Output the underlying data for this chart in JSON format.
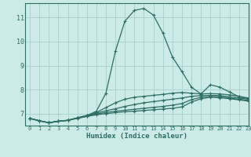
{
  "title": "",
  "xlabel": "Humidex (Indice chaleur)",
  "ylabel": "",
  "background_color": "#cceae7",
  "grid_color": "#aad4d0",
  "line_color": "#2e6e65",
  "xlim": [
    -0.5,
    23
  ],
  "ylim": [
    6.5,
    11.6
  ],
  "xticks": [
    0,
    1,
    2,
    3,
    4,
    5,
    6,
    7,
    8,
    9,
    10,
    11,
    12,
    13,
    14,
    15,
    16,
    17,
    18,
    19,
    20,
    21,
    22,
    23
  ],
  "yticks": [
    7,
    8,
    9,
    10,
    11
  ],
  "curves": [
    [
      6.8,
      6.7,
      6.62,
      6.68,
      6.72,
      6.82,
      6.92,
      7.1,
      7.85,
      9.6,
      10.85,
      11.3,
      11.38,
      11.1,
      10.35,
      9.35,
      8.75,
      8.1,
      7.82,
      8.2,
      8.1,
      7.9,
      7.7,
      7.62
    ],
    [
      6.8,
      6.7,
      6.62,
      6.68,
      6.72,
      6.82,
      6.92,
      7.05,
      7.25,
      7.45,
      7.6,
      7.68,
      7.72,
      7.76,
      7.8,
      7.85,
      7.88,
      7.85,
      7.82,
      7.83,
      7.82,
      7.78,
      7.72,
      7.65
    ],
    [
      6.8,
      6.7,
      6.62,
      6.68,
      6.72,
      6.82,
      6.92,
      7.02,
      7.12,
      7.2,
      7.3,
      7.38,
      7.45,
      7.5,
      7.55,
      7.6,
      7.65,
      7.72,
      7.75,
      7.76,
      7.75,
      7.7,
      7.65,
      7.6
    ],
    [
      6.8,
      6.7,
      6.62,
      6.68,
      6.72,
      6.82,
      6.9,
      6.98,
      7.05,
      7.1,
      7.14,
      7.18,
      7.22,
      7.26,
      7.3,
      7.35,
      7.42,
      7.58,
      7.68,
      7.72,
      7.7,
      7.65,
      7.6,
      7.55
    ],
    [
      6.8,
      6.7,
      6.62,
      6.68,
      6.72,
      6.8,
      6.88,
      6.95,
      7.0,
      7.04,
      7.08,
      7.1,
      7.13,
      7.16,
      7.19,
      7.22,
      7.28,
      7.48,
      7.62,
      7.68,
      7.66,
      7.62,
      7.57,
      7.52
    ]
  ]
}
